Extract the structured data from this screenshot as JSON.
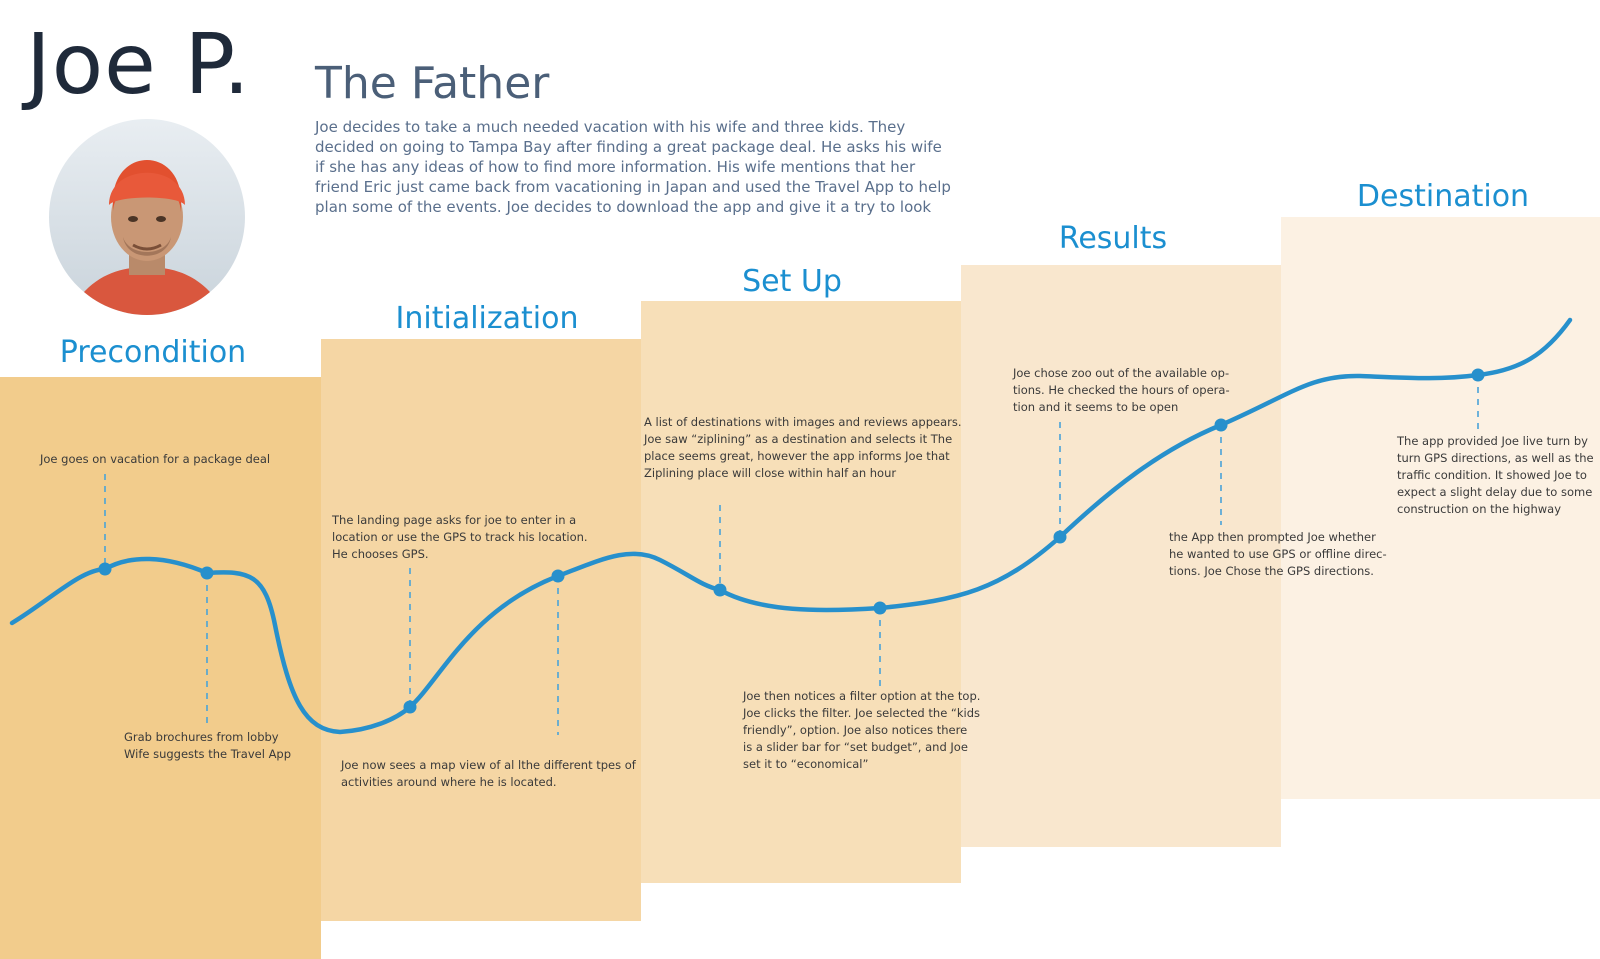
{
  "persona": {
    "name": "Joe P.",
    "role": "The Father",
    "description": "Joe decides to take a much needed vacation with his wife and three kids. They decided on going to Tampa Bay after finding a great package deal. He asks his wife if she has any ideas of how to find more information. His wife mentions that her friend Eric just came back from vacationing in Japan and used the Travel App to help plan some of the events. Joe decides to download the app and give it a try to look"
  },
  "colors": {
    "stage_fills": [
      "#f2cc8c",
      "#f5d6a4",
      "#f7dfb8",
      "#f9e7ce",
      "#fcf1e3"
    ],
    "accent": "#1b8fd0",
    "curve": "#2790cc",
    "dash": "#4aa3d8",
    "title_dark": "#1f2a3a",
    "role_color": "#4b5f78",
    "desc_color": "#5a6f8c"
  },
  "stages": [
    {
      "title": "Precondition"
    },
    {
      "title": "Initialization"
    },
    {
      "title": "Set Up"
    },
    {
      "title": "Results"
    },
    {
      "title": "Destination"
    }
  ],
  "notes": [
    {
      "text": "Joe goes on vacation for a package deal"
    },
    {
      "text": "Grab brochures from lobby\nWife suggests the Travel App"
    },
    {
      "text": "The landing page asks for joe to enter in a\nlocation or use the GPS to track his location.\nHe chooses GPS."
    },
    {
      "text": "Joe now sees a map view of al lthe different tpes of\nactivities around where he is located."
    },
    {
      "text": " A list of destinations with images and reviews appears.\nJoe saw “ziplining” as a destination and selects it The\nplace seems great, however the app informs Joe that\nZiplining place will close within half an hour"
    },
    {
      "text": "Joe then notices a filter option at the top.\nJoe clicks the filter. Joe selected the “kids\nfriendly”, option. Joe also  notices there\nis a slider bar for “set budget”, and Joe\nset it to “economical”"
    },
    {
      "text": "Joe chose zoo out of the available op-\ntions. He checked the hours of opera-\ntion and it seems to be open"
    },
    {
      "text": " the App then prompted Joe whether\nhe wanted to use GPS or offline direc-\ntions. Joe Chose the GPS directions."
    },
    {
      "text": "The app provided Joe live turn by\nturn GPS directions, as well as the\ntraffic condition. It showed Joe to\nexpect a slight delay due to some\nconstruction on the highway"
    }
  ],
  "avatar": {
    "icon": "person-photo-icon"
  }
}
